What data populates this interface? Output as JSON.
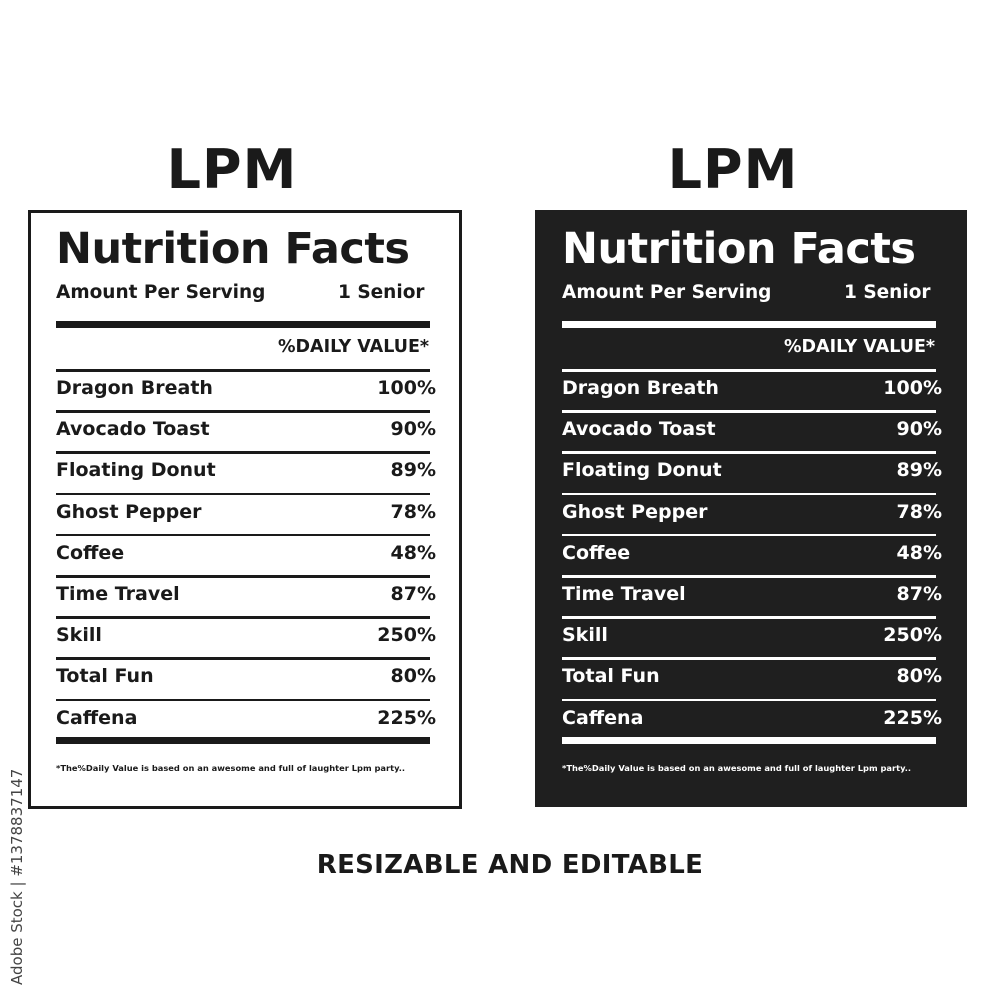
{
  "brand": "LPM",
  "label": {
    "title": "Nutrition Facts",
    "serving_label": "Amount Per Serving",
    "serving_value": "1 Senior",
    "daily_value_header": "%DAILY VALUE*",
    "nutrients": [
      {
        "name": "Dragon Breath",
        "percent": "100%"
      },
      {
        "name": "Avocado Toast",
        "percent": "90%"
      },
      {
        "name": "Floating Donut",
        "percent": "89%"
      },
      {
        "name": "Ghost Pepper",
        "percent": "78%"
      },
      {
        "name": "Coffee",
        "percent": "48%"
      },
      {
        "name": "Time Travel",
        "percent": "87%"
      },
      {
        "name": "Skill",
        "percent": "250%"
      },
      {
        "name": "Total Fun",
        "percent": "80%"
      },
      {
        "name": "Caffena",
        "percent": "225%"
      }
    ],
    "footnote": "*The%Daily Value is based on an awesome and full of laughter Lpm party.."
  },
  "tagline": "RESIZABLE AND EDITABLE",
  "stock_id": "Adobe Stock | #1378837147",
  "colors": {
    "ink": "#1a1a1a",
    "dark_panel": "#1f1f1f",
    "paper": "#ffffff"
  }
}
